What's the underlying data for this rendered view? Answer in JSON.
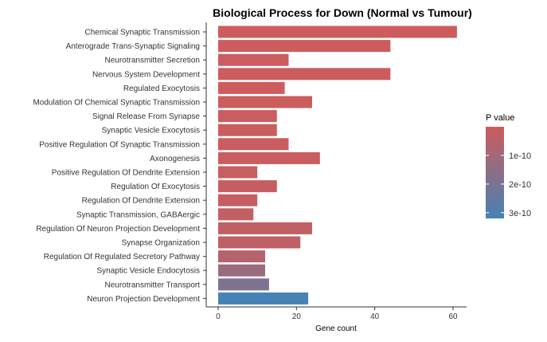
{
  "chart_data": {
    "type": "bar",
    "orientation": "horizontal",
    "title": "Biological Process for Down (Normal vs Tumour)",
    "xlabel": "Gene count",
    "ylabel": "",
    "xlim": [
      0,
      64
    ],
    "xticks": [
      0,
      20,
      40,
      60
    ],
    "grid": false,
    "legend": {
      "title": "P value",
      "placement": "right",
      "type": "colorbar",
      "range": [
        0,
        3.2e-10
      ],
      "ticks": [
        {
          "value": 1e-10,
          "label": "1e-10"
        },
        {
          "value": 2e-10,
          "label": "2e-10"
        },
        {
          "value": 3e-10,
          "label": "3e-10"
        }
      ],
      "low_color": "#cd5c5c",
      "high_color": "#4682b4"
    },
    "categories": [
      "Chemical Synaptic Transmission",
      "Anterograde Trans-Synaptic Signaling",
      "Neurotransmitter Secretion",
      "Nervous System Development",
      "Regulated Exocytosis",
      "Modulation Of Chemical Synaptic Transmission",
      "Signal Release From Synapse",
      "Synaptic Vesicle Exocytosis",
      "Positive Regulation Of Synaptic Transmission",
      "Axonogenesis",
      "Positive Regulation Of Dendrite Extension",
      "Regulation Of Exocytosis",
      "Regulation Of Dendrite Extension",
      "Synaptic Transmission, GABAergic",
      "Regulation Of Neuron Projection Development",
      "Synapse Organization",
      "Regulation Of Regulated Secretory Pathway",
      "Synaptic Vesicle Endocytosis",
      "Neurotransmitter Transport",
      "Neuron Projection Development"
    ],
    "values": [
      61,
      44,
      18,
      44,
      17,
      24,
      15,
      15,
      18,
      26,
      10,
      15,
      10,
      9,
      24,
      21,
      12,
      12,
      13,
      23
    ],
    "p_values": [
      2e-12,
      2e-12,
      2e-12,
      3e-12,
      3e-12,
      5e-12,
      7e-12,
      7e-12,
      1e-11,
      1e-11,
      1.5e-11,
      2e-11,
      2e-11,
      2.5e-11,
      3e-11,
      3.5e-11,
      6e-11,
      1.2e-10,
      1.9e-10,
      3.2e-10
    ]
  }
}
